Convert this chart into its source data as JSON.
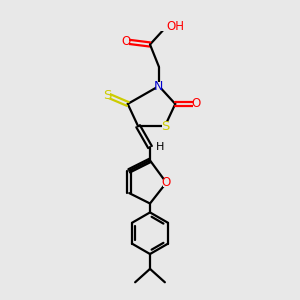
{
  "bg_color": "#e8e8e8",
  "bond_color": "#000000",
  "bond_width": 1.6,
  "figsize": [
    3.0,
    3.0
  ],
  "dpi": 100,
  "colors": {
    "N": "#0000cc",
    "O": "#ff0000",
    "S": "#cccc00",
    "C": "#000000",
    "H": "#000000"
  }
}
